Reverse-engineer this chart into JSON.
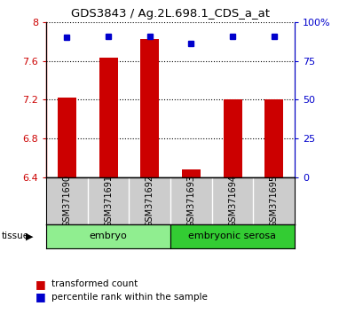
{
  "title": "GDS3843 / Ag.2L.698.1_CDS_a_at",
  "samples": [
    "GSM371690",
    "GSM371691",
    "GSM371692",
    "GSM371693",
    "GSM371694",
    "GSM371695"
  ],
  "red_values": [
    7.22,
    7.63,
    7.82,
    6.48,
    7.2,
    7.2
  ],
  "blue_values": [
    90,
    91,
    91,
    86,
    91,
    91
  ],
  "ylim_left": [
    6.4,
    8.0
  ],
  "ylim_right": [
    0,
    100
  ],
  "yticks_left": [
    6.4,
    6.8,
    7.2,
    7.6,
    8.0
  ],
  "ytick_labels_left": [
    "6.4",
    "6.8",
    "7.2",
    "7.6",
    "8"
  ],
  "yticks_right": [
    0,
    25,
    50,
    75,
    100
  ],
  "ytick_labels_right": [
    "0",
    "25",
    "50",
    "75",
    "100%"
  ],
  "groups": [
    {
      "label": "embryo",
      "samples": [
        0,
        1,
        2
      ],
      "color": "#90ee90"
    },
    {
      "label": "embryonic serosa",
      "samples": [
        3,
        4,
        5
      ],
      "color": "#33cc33"
    }
  ],
  "tissue_label": "tissue",
  "bar_color": "#cc0000",
  "dot_color": "#0000cc",
  "bar_width": 0.45,
  "bg_plot": "#ffffff",
  "bg_label_area": "#cccccc",
  "legend_red_label": "transformed count",
  "legend_blue_label": "percentile rank within the sample"
}
